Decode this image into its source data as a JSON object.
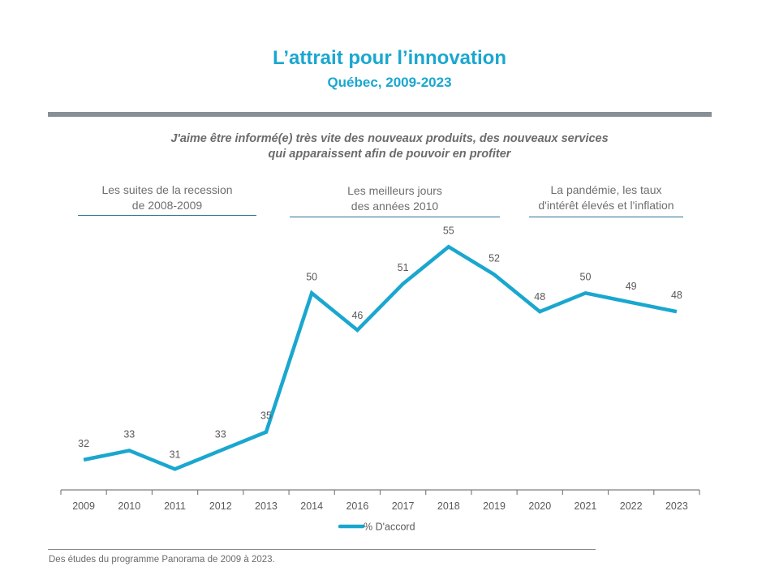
{
  "header": {
    "title": "L’attrait pour l’innovation",
    "subtitle": "Québec, 2009-2023"
  },
  "question": {
    "line1": "J'aime être informé(e) très vite des nouveaux produits, des nouveaux services",
    "line2": "qui apparaissent afin de pouvoir en profiter"
  },
  "periods": [
    {
      "line1": "Les suites de la recession",
      "line2": "de 2008-2009"
    },
    {
      "line1": "Les meilleurs jours",
      "line2": "des années 2010"
    },
    {
      "line1": "La pandémie, les taux",
      "line2": "d'intérêt élevés et l'inflation"
    }
  ],
  "colors": {
    "accent": "#1aa7cf",
    "line": "#1aa7cf",
    "axis": "#7f7f7f",
    "label": "#595959"
  },
  "chart_data": {
    "type": "line",
    "title": "L’attrait pour l’innovation",
    "subtitle": "Québec, 2009-2023",
    "xlabel": "",
    "ylabel": "",
    "categories": [
      "2009",
      "2010",
      "2011",
      "2012",
      "2013",
      "2014",
      "2016",
      "2017",
      "2018",
      "2019",
      "2020",
      "2021",
      "2022",
      "2023"
    ],
    "series": [
      {
        "name": "% D'accord",
        "values": [
          32,
          33,
          31,
          33,
          35,
          50,
          46,
          51,
          55,
          52,
          48,
          50,
          49,
          48
        ]
      }
    ],
    "ylim": [
      28.75,
      58
    ],
    "grid": false,
    "data_labels": true,
    "legend": "bottom-center"
  },
  "footer": {
    "source": "Des études du programme  Panorama de 2009 à 2023."
  }
}
